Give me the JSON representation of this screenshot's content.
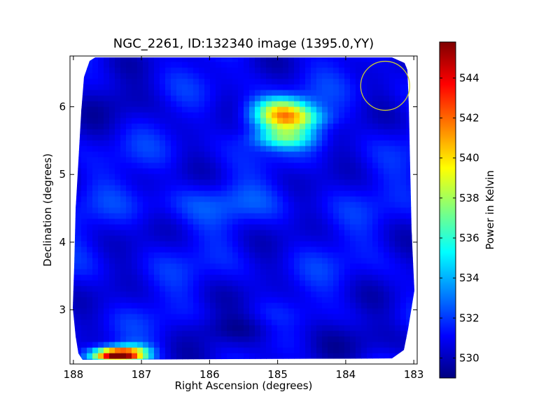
{
  "chart_data": {
    "type": "heatmap",
    "title": "NGC_2261, ID:132340 image (1395.0,YY)",
    "xlabel": "Right Ascension (degrees)",
    "ylabel": "Declination (degrees)",
    "colorbar_label": "Power in Kelvin",
    "colormap": "jet",
    "xlim": [
      188.05,
      182.95
    ],
    "ylim": [
      2.2,
      6.75
    ],
    "x_ticks": [
      188,
      187,
      186,
      185,
      184,
      183
    ],
    "y_ticks": [
      3,
      4,
      5,
      6
    ],
    "vmin": 529.0,
    "vmax": 545.8,
    "colorbar_ticks": [
      530,
      532,
      534,
      536,
      538,
      540,
      542,
      544
    ],
    "background_level": 531.0,
    "features": [
      {
        "ra": 187.4,
        "dec": 2.33,
        "peak": 545.5,
        "sigma_ra": 0.22,
        "sigma_dec": 0.08
      },
      {
        "ra": 187.1,
        "dec": 2.36,
        "peak": 537.0,
        "sigma_ra": 0.18,
        "sigma_dec": 0.09
      },
      {
        "ra": 184.85,
        "dec": 5.82,
        "peak": 539.0,
        "sigma_ra": 0.35,
        "sigma_dec": 0.12
      },
      {
        "ra": 184.95,
        "dec": 6.0,
        "peak": 536.5,
        "sigma_ra": 0.3,
        "sigma_dec": 0.12
      },
      {
        "ra": 184.9,
        "dec": 5.55,
        "peak": 536.0,
        "sigma_ra": 0.32,
        "sigma_dec": 0.11
      },
      {
        "ra": 187.2,
        "dec": 6.1,
        "peak": 530.0,
        "sigma_ra": 0.5,
        "sigma_dec": 0.2
      },
      {
        "ra": 185.5,
        "dec": 2.72,
        "peak": 529.6,
        "sigma_ra": 0.6,
        "sigma_dec": 0.15
      },
      {
        "ra": 186.0,
        "dec": 4.6,
        "peak": 532.0,
        "sigma_ra": 0.8,
        "sigma_dec": 0.2
      },
      {
        "ra": 183.5,
        "dec": 2.6,
        "peak": 530.0,
        "sigma_ra": 0.6,
        "sigma_dec": 0.2
      }
    ],
    "beam_circle": {
      "ra": 183.42,
      "dec": 6.31,
      "radius_deg": 0.36,
      "color": "#cccc33"
    },
    "grid": false,
    "legend": "colorbar-right"
  }
}
